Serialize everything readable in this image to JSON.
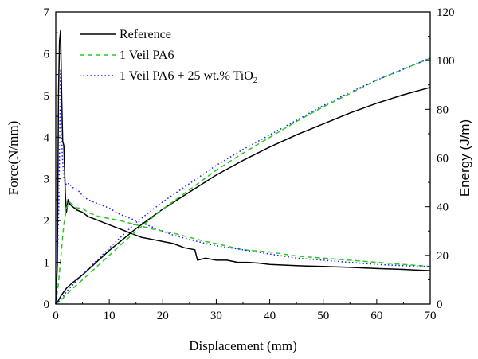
{
  "chart_data": {
    "type": "line",
    "xlabel": "Displacement (mm)",
    "ylabel_left": "Force(N/mm)",
    "ylabel_right": "Energy (J/m)",
    "xlim": [
      0,
      70
    ],
    "ylim_left": [
      0,
      7
    ],
    "ylim_right": [
      0,
      120
    ],
    "x_ticks": [
      "0",
      "10",
      "20",
      "30",
      "40",
      "50",
      "60",
      "70"
    ],
    "y_left_ticks": [
      "0",
      "1",
      "2",
      "3",
      "4",
      "5",
      "6",
      "7"
    ],
    "y_right_ticks": [
      "0",
      "20",
      "40",
      "60",
      "80",
      "100",
      "120"
    ],
    "grid": false,
    "legend_position": "top-left",
    "legend": [
      {
        "label": "Reference",
        "style": "solid",
        "color": "#000000"
      },
      {
        "label": "1 Veil PA6",
        "style": "dashed",
        "color": "#22cc22"
      },
      {
        "label_prefix": "1 Veil PA6 + 25 wt.% TiO",
        "label_subscript": "2",
        "style": "dotted",
        "color": "#1a1aff"
      }
    ],
    "series": [
      {
        "name": "Reference",
        "kind": "force",
        "axis": "left",
        "color": "#000000",
        "style": "solid",
        "x": [
          0,
          0.3,
          0.5,
          0.7,
          0.9,
          1.1,
          1.3,
          1.5,
          1.8,
          2.0,
          2.3,
          2.6,
          3.0,
          3.5,
          4.0,
          5.0,
          6.0,
          7.0,
          8.0,
          9.0,
          10,
          12,
          14,
          16,
          18,
          20,
          22,
          24,
          26,
          26.5,
          28,
          30,
          32,
          34,
          36,
          38,
          40,
          45,
          50,
          55,
          60,
          65,
          70
        ],
        "y": [
          0,
          0.95,
          5.0,
          6.3,
          6.55,
          5.0,
          3.9,
          3.8,
          2.6,
          2.2,
          2.5,
          2.4,
          2.35,
          2.3,
          2.25,
          2.2,
          2.1,
          2.05,
          2.0,
          1.95,
          1.9,
          1.8,
          1.7,
          1.6,
          1.55,
          1.5,
          1.45,
          1.35,
          1.3,
          1.05,
          1.1,
          1.05,
          1.05,
          1.0,
          1.0,
          0.98,
          0.95,
          0.92,
          0.9,
          0.88,
          0.85,
          0.83,
          0.8
        ]
      },
      {
        "name": "1 Veil PA6",
        "kind": "force",
        "axis": "left",
        "color": "#22cc22",
        "style": "dashed",
        "x": [
          0,
          0.5,
          1.0,
          1.5,
          2.0,
          2.5,
          3.0,
          4.0,
          5.0,
          6.0,
          8.0,
          10,
          12,
          15,
          18,
          20,
          22,
          25,
          28,
          30,
          35,
          40,
          45,
          50,
          55,
          60,
          65,
          70
        ],
        "y": [
          0,
          0.5,
          1.2,
          1.9,
          2.3,
          2.45,
          2.4,
          2.3,
          2.3,
          2.2,
          2.1,
          2.05,
          2.0,
          1.9,
          1.8,
          1.75,
          1.7,
          1.6,
          1.5,
          1.45,
          1.3,
          1.25,
          1.15,
          1.1,
          1.05,
          1.0,
          0.95,
          0.9
        ]
      },
      {
        "name": "1 Veil PA6 + 25 wt.% TiO2",
        "kind": "force",
        "axis": "left",
        "color": "#1a1aff",
        "style": "dotted",
        "x": [
          0,
          0.3,
          0.6,
          0.9,
          1.2,
          1.5,
          2.0,
          2.5,
          3.0,
          4.0,
          5.0,
          6.0,
          8.0,
          10,
          12,
          15,
          18,
          20,
          22,
          25,
          28,
          30,
          35,
          40,
          45,
          50,
          55,
          60,
          65,
          70
        ],
        "y": [
          0,
          1.0,
          2.5,
          5.6,
          3.6,
          3.0,
          2.85,
          2.9,
          2.8,
          2.75,
          2.6,
          2.5,
          2.4,
          2.3,
          2.15,
          2.0,
          1.85,
          1.75,
          1.65,
          1.55,
          1.45,
          1.4,
          1.3,
          1.2,
          1.1,
          1.05,
          1.0,
          0.95,
          0.92,
          0.9
        ]
      },
      {
        "name": "Reference",
        "kind": "energy",
        "axis": "right",
        "color": "#000000",
        "style": "solid",
        "x": [
          0,
          0.5,
          1.0,
          2.0,
          3.0,
          5.0,
          7.0,
          10,
          15,
          20,
          25,
          30,
          35,
          40,
          45,
          50,
          55,
          60,
          65,
          70
        ],
        "y": [
          0,
          1.5,
          3.5,
          6.5,
          8.5,
          12,
          16,
          22,
          31,
          39,
          46,
          53,
          59,
          64.5,
          69.5,
          74,
          78.5,
          82.5,
          86,
          89
        ]
      },
      {
        "name": "1 Veil PA6",
        "kind": "energy",
        "axis": "right",
        "color": "#22cc22",
        "style": "dashed",
        "x": [
          0,
          1.0,
          2.0,
          3.0,
          5.0,
          7.0,
          10,
          15,
          20,
          25,
          30,
          35,
          40,
          45,
          50,
          55,
          60,
          65,
          70
        ],
        "y": [
          0,
          1.5,
          4.0,
          6.0,
          10,
          14,
          20,
          30,
          39,
          47,
          55,
          62,
          68.5,
          75,
          81,
          86.5,
          92,
          96.5,
          101
        ]
      },
      {
        "name": "1 Veil PA6 + 25 wt.% TiO2",
        "kind": "energy",
        "axis": "right",
        "color": "#1a1aff",
        "style": "dotted",
        "x": [
          0,
          1.0,
          2.0,
          3.0,
          5.0,
          7.0,
          10,
          15,
          20,
          25,
          30,
          35,
          40,
          45,
          50,
          55,
          60,
          65,
          70
        ],
        "y": [
          0,
          2.0,
          5.0,
          7.5,
          12,
          16.5,
          23,
          33.5,
          42,
          49.5,
          57,
          63.5,
          69.5,
          75.5,
          81.5,
          87,
          92,
          96.5,
          101
        ]
      }
    ]
  }
}
